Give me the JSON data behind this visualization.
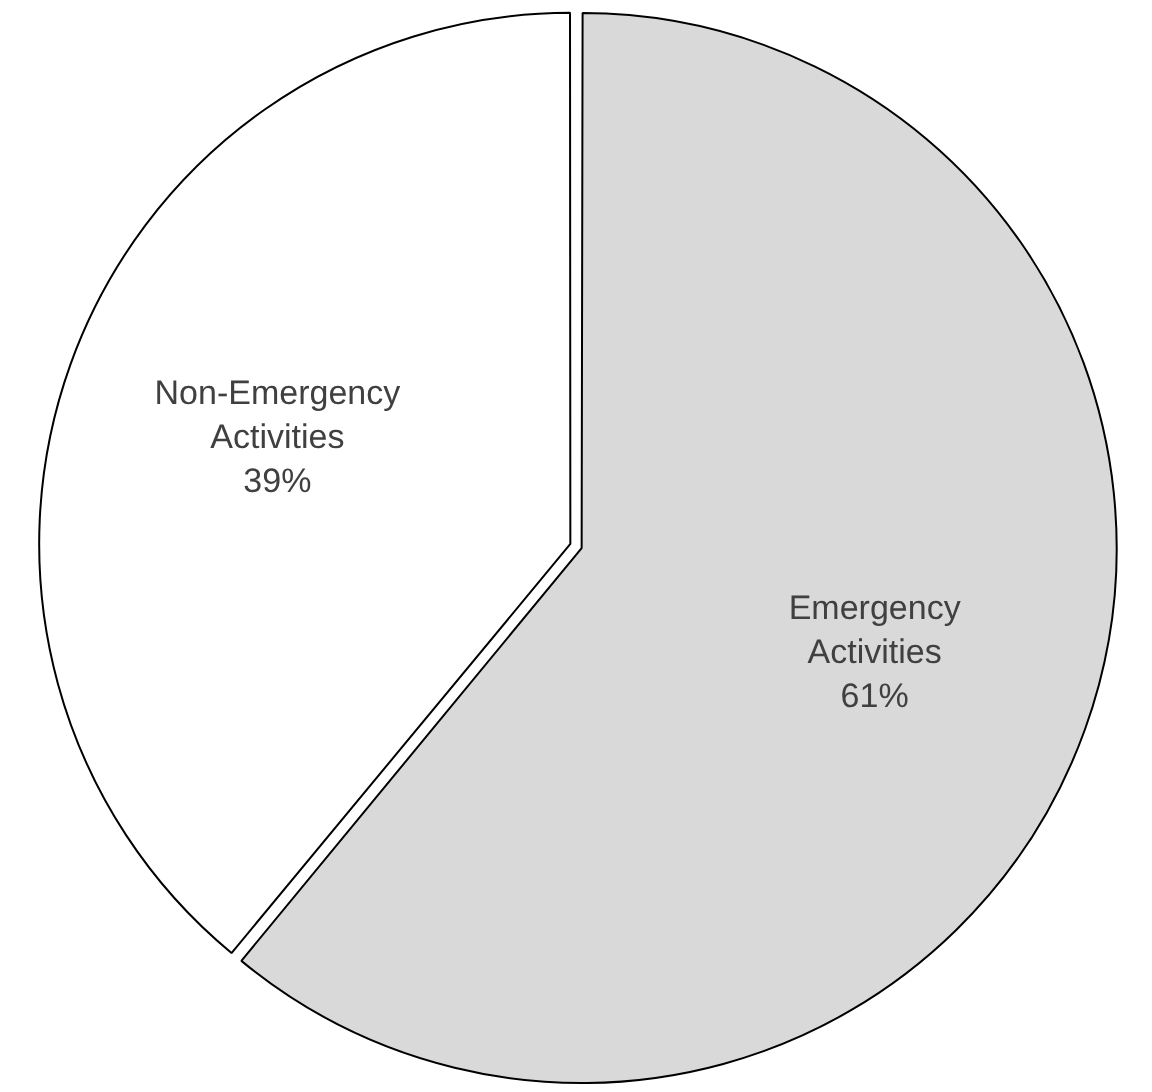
{
  "chart_data": {
    "type": "pie",
    "categories": [
      "Emergency Activities",
      "Non-Emergency Activities"
    ],
    "values": [
      61,
      39
    ],
    "colors": [
      "#d9d9d9",
      "#ffffff"
    ],
    "value_labels": [
      "61%",
      "39%"
    ],
    "legend": false
  }
}
